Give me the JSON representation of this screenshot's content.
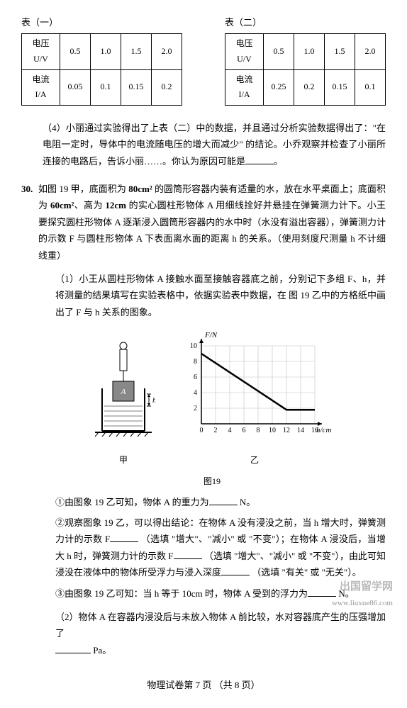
{
  "table1": {
    "title": "表（一）",
    "row1_label": "电压 U/V",
    "row1": [
      "0.5",
      "1.0",
      "1.5",
      "2.0"
    ],
    "row2_label": "电流 I/A",
    "row2": [
      "0.05",
      "0.1",
      "0.15",
      "0.2"
    ]
  },
  "table2": {
    "title": "表（二）",
    "row1_label": "电压 U/V",
    "row1": [
      "0.5",
      "1.0",
      "1.5",
      "2.0"
    ],
    "row2_label": "电流 I/A",
    "row2": [
      "0.25",
      "0.2",
      "0.15",
      "0.1"
    ]
  },
  "q4": {
    "text": "（4）小丽通过实验得出了上表（二）中的数据，并且通过分析实验数据得出了：\"在电阻一定时，导体中的电流随电压的增大而减少\" 的结论。小乔观察并检查了小丽所连接的电路后，告诉小丽……。你认为原因可能是",
    "blank_suffix": "。"
  },
  "q30": {
    "num": "30.",
    "intro1": "如图 19 甲，底面积为 ",
    "c1": "80cm²",
    "intro2": " 的圆筒形容器内装有适量的水，放在水平桌面上；底面积为 ",
    "c2": "60cm²",
    "intro3": "、高为 ",
    "c3": "12cm",
    "intro4": " 的实心圆柱形物体 A 用细线拴好并悬挂在弹簧测力计下。小王要探究圆柱形物体 A 逐渐浸入圆筒形容器内的水中时（水没有溢出容器），弹簧测力计的示数 F 与圆柱形物体 A 下表面离水面的距离 h 的关系。（使用刻度尺测量 h  不计细线重）",
    "p1": "（1）小王从圆柱形物体 A 接触水面至接触容器底之前，分别记下多组 F、h，并将测量的结果填写在实验表格中，依据实验表中数据，在 图 19 乙中的方格纸中画出了 F 与 h 关系的图象。",
    "fig_caption_left": "甲",
    "fig_caption_center": "图19",
    "fig_caption_right": "乙",
    "s1a": "①由图象 19 乙可知，物体 A 的重力为",
    "s1b": "N。",
    "s2a": "②观察图象 19 乙，可以得出结论：在物体 A 没有浸没之前，当 h 增大时，弹簧测力计的示数 F",
    "s2b": "（选填 \"增大\"、\"减小\" 或 \"不变\"）；在物体 A 浸没后，当增大 h 时，弹簧测力计的示数 F",
    "s2c": "（选填 \"增大\"、\"减小\" 或 \"不变\"），由此可知浸没在液体中的物体所受浮力与浸入深度",
    "s2d": "（选填 \"有关\" 或 \"无关\"）。",
    "s3a": "③由图象 19 乙可知：当 h 等于 10cm 时，物体 A 受到的浮力为",
    "s3b": "N。",
    "p2a": "（2）物体 A 在容器内浸没后与未放入物体 A 前比较，水对容器底产生的压强增加了",
    "p2b": "Pa。"
  },
  "footer": "物理试卷第 7 页 （共 8 页）",
  "watermark1": "出国留学网",
  "watermark2": "www.liuxue86.com",
  "chart": {
    "ylabel": "F/N",
    "xlabel": "h/cm",
    "xticks": [
      0,
      2,
      4,
      6,
      8,
      10,
      12,
      14,
      16
    ],
    "yticks": [
      0,
      2,
      4,
      6,
      8,
      10
    ],
    "line_points": [
      [
        0,
        9
      ],
      [
        12,
        1.8
      ],
      [
        16,
        1.8
      ]
    ],
    "grid_color": "#c0c0c0",
    "line_color": "#000000",
    "line_width": 2.5,
    "background": "#ffffff"
  }
}
